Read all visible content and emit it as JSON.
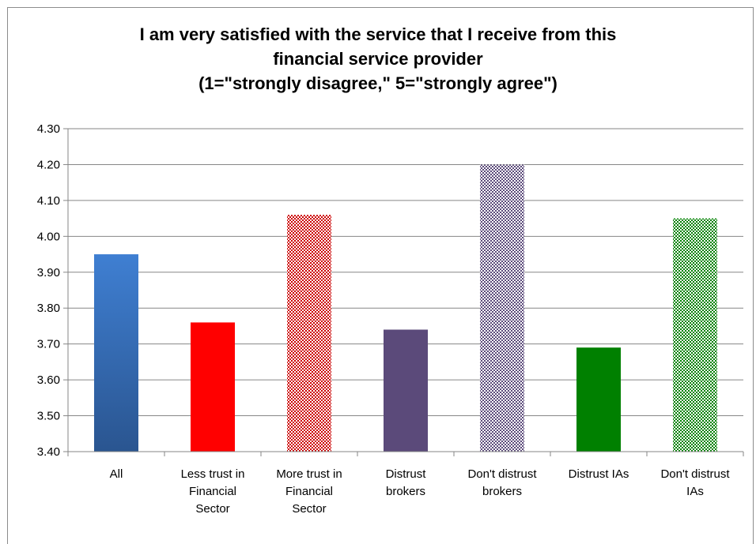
{
  "chart_data": {
    "type": "bar",
    "title": "I am very satisfied with the service that I receive from this financial service provider (1=\"strongly disagree,\" 5=\"strongly agree\")",
    "title_lines": [
      "I am very satisfied with the service that I receive from this",
      "financial service provider",
      "(1=\"strongly disagree,\" 5=\"strongly agree\")"
    ],
    "xlabel": "",
    "ylabel": "",
    "ylim": [
      3.4,
      4.3
    ],
    "yticks": [
      "3.40",
      "3.50",
      "3.60",
      "3.70",
      "3.80",
      "3.90",
      "4.00",
      "4.10",
      "4.20",
      "4.30"
    ],
    "grid": true,
    "legend": "none",
    "categories": [
      [
        "All"
      ],
      [
        "Less trust in",
        "Financial",
        "Sector"
      ],
      [
        "More trust in",
        "Financial",
        "Sector"
      ],
      [
        "Distrust",
        "brokers"
      ],
      [
        "Don't distrust",
        "brokers"
      ],
      [
        "Distrust IAs"
      ],
      [
        "Don't distrust",
        "IAs"
      ]
    ],
    "values": [
      3.95,
      3.76,
      4.06,
      3.74,
      4.2,
      3.69,
      4.05
    ],
    "bar_styles": [
      {
        "fill": "solid-gradient",
        "color": "#3d78c7",
        "color2": "#2a5792"
      },
      {
        "fill": "solid",
        "color": "#ff0000"
      },
      {
        "fill": "pattern",
        "color": "#cc0000"
      },
      {
        "fill": "solid",
        "color": "#5b4a7a"
      },
      {
        "fill": "pattern",
        "color": "#5b4a7a"
      },
      {
        "fill": "solid",
        "color": "#008000"
      },
      {
        "fill": "pattern",
        "color": "#008000"
      }
    ]
  }
}
